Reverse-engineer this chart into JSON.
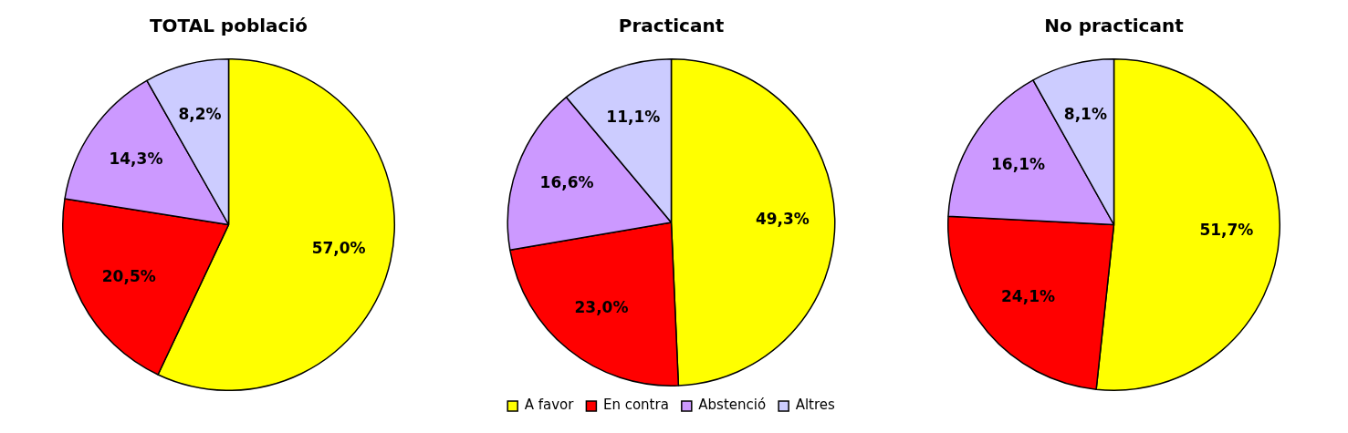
{
  "chart_data": [
    {
      "type": "pie",
      "title": "TOTAL població",
      "categories": [
        null,
        null,
        null,
        null
      ],
      "values": [
        57.0,
        20.5,
        14.3,
        8.2
      ],
      "colors": [
        "#ffff00",
        "#ff0000",
        "#cc99ff",
        "#ccccff"
      ],
      "value_labels": [
        "57,0%",
        "20,5%",
        "14,3%",
        "8,2%"
      ],
      "legend": false
    },
    {
      "type": "pie",
      "title": "Practicant",
      "categories": [
        "A favor",
        "En contra",
        "Abstenció",
        "Altres"
      ],
      "values": [
        49.3,
        23.0,
        16.6,
        11.1
      ],
      "colors": [
        "#ffff00",
        "#ff0000",
        "#cc99ff",
        "#ccccff"
      ],
      "value_labels": [
        "49,3%",
        "23,0%",
        "16,6%",
        "11,1%"
      ],
      "legend": "bottom"
    },
    {
      "type": "pie",
      "title": "No practicant",
      "categories": [
        null,
        null,
        null,
        null
      ],
      "values": [
        51.7,
        24.1,
        16.1,
        8.1
      ],
      "colors": [
        "#ffff00",
        "#ff0000",
        "#cc99ff",
        "#ccccff"
      ],
      "value_labels": [
        "51,7%",
        "24,1%",
        "16,1%",
        "8,1%"
      ],
      "legend": false
    }
  ]
}
